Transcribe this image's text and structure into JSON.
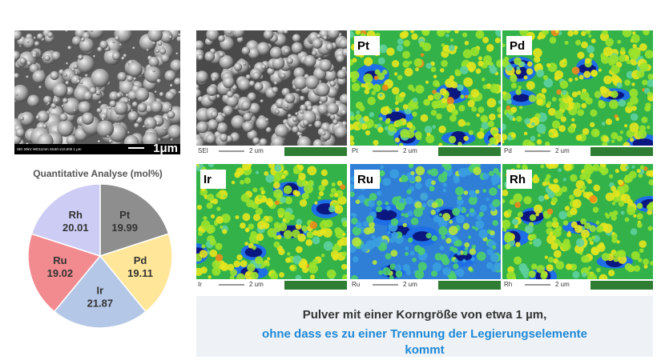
{
  "sem_image": {
    "info": "SEI 20kV WD11mm SS40 x10,000 1 μm",
    "scale": "1μm"
  },
  "chart_data": {
    "type": "pie",
    "title": "Quantitative Analyse (mol%)",
    "categories": [
      "Pt",
      "Pd",
      "Ir",
      "Ru",
      "Rh"
    ],
    "values": [
      19.99,
      19.11,
      21.87,
      19.02,
      20.01
    ],
    "colors": [
      "#8e8e8e",
      "#ffe699",
      "#b4c7e7",
      "#f28b8f",
      "#ccccf5"
    ]
  },
  "maps": [
    {
      "footer": "SEI",
      "scale": "2 um"
    },
    {
      "label": "Pt",
      "footer": "Pt",
      "scale": "2 um"
    },
    {
      "label": "Pd",
      "footer": "Pd",
      "scale": "2 um"
    },
    {
      "label": "Ir",
      "footer": "Ir",
      "scale": "2 um"
    },
    {
      "label": "Ru",
      "footer": "Ru",
      "scale": "2 um"
    },
    {
      "label": "Rh",
      "footer": "Rh",
      "scale": "2 um"
    }
  ],
  "caption": {
    "line1": "Pulver mit einer Korngröße von etwa 1 µm,",
    "line2": "ohne dass es zu einer Trennung der Legierungselemente",
    "line3": "kommt"
  }
}
